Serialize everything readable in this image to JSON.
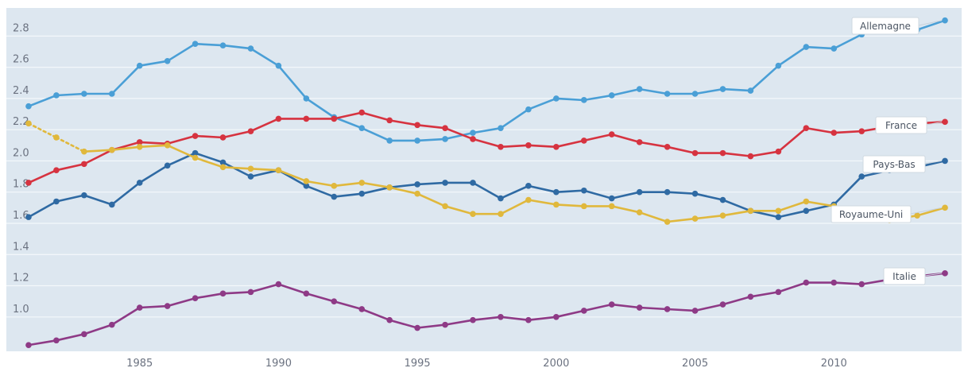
{
  "chart_data": {
    "type": "line",
    "x": [
      1981,
      1982,
      1983,
      1984,
      1985,
      1986,
      1987,
      1988,
      1989,
      1990,
      1991,
      1992,
      1993,
      1994,
      1995,
      1996,
      1997,
      1998,
      1999,
      2000,
      2001,
      2002,
      2003,
      2004,
      2005,
      2006,
      2007,
      2008,
      2009,
      2010,
      2011,
      2012,
      2013,
      2014
    ],
    "x_ticks": [
      "1985",
      "1990",
      "1995",
      "2000",
      "2005",
      "2010"
    ],
    "y_ticks": [
      "1.0",
      "1.2",
      "1.4",
      "1.6",
      "1.8",
      "2.0",
      "2.2",
      "2.4",
      "2.6",
      "2.8"
    ],
    "ylim": [
      0.78,
      2.98
    ],
    "xlim": [
      1980.2,
      2014.6
    ],
    "grid": true,
    "legend": "direct labels at right end",
    "colors": {
      "background": "#dde7f0",
      "grid": "#f4f8fb",
      "Allemagne": "#4a9fd6",
      "France": "#d63340",
      "Pays-Bas": "#2f6aa3",
      "Royaume-Uni": "#e0b83c",
      "Italie": "#8e3a86"
    },
    "series": [
      {
        "name": "Allemagne",
        "values": [
          2.35,
          2.42,
          2.43,
          2.43,
          2.61,
          2.64,
          2.75,
          2.74,
          2.72,
          2.61,
          2.4,
          2.28,
          2.21,
          2.13,
          2.13,
          2.14,
          2.18,
          2.21,
          2.33,
          2.4,
          2.39,
          2.42,
          2.46,
          2.43,
          2.43,
          2.46,
          2.45,
          2.61,
          2.73,
          2.72,
          2.81,
          2.87,
          2.84,
          2.9
        ]
      },
      {
        "name": "France",
        "values": [
          1.86,
          1.94,
          1.98,
          2.07,
          2.12,
          2.11,
          2.16,
          2.15,
          2.19,
          2.27,
          2.27,
          2.27,
          2.31,
          2.26,
          2.23,
          2.21,
          2.14,
          2.09,
          2.1,
          2.09,
          2.13,
          2.17,
          2.12,
          2.09,
          2.05,
          2.05,
          2.03,
          2.06,
          2.21,
          2.18,
          2.19,
          2.22,
          2.24,
          2.25
        ]
      },
      {
        "name": "Pays-Bas",
        "values": [
          1.64,
          1.74,
          1.78,
          1.72,
          1.86,
          1.97,
          2.05,
          1.99,
          1.9,
          1.94,
          1.84,
          1.77,
          1.79,
          1.83,
          1.85,
          1.86,
          1.86,
          1.76,
          1.84,
          1.8,
          1.81,
          1.76,
          1.8,
          1.8,
          1.79,
          1.75,
          1.68,
          1.64,
          1.68,
          1.72,
          1.9,
          1.94,
          1.96,
          2.0
        ]
      },
      {
        "name": "Royaume-Uni",
        "values": [
          2.24,
          2.15,
          2.06,
          2.07,
          2.09,
          2.1,
          2.02,
          1.96,
          1.95,
          1.94,
          1.87,
          1.84,
          1.86,
          1.83,
          1.79,
          1.71,
          1.66,
          1.66,
          1.75,
          1.72,
          1.71,
          1.71,
          1.67,
          1.61,
          1.63,
          1.65,
          1.68,
          1.68,
          1.74,
          1.71,
          1.66,
          1.62,
          1.65,
          1.7
        ]
      },
      {
        "name": "Italie",
        "values": [
          0.82,
          0.85,
          0.89,
          0.95,
          1.06,
          1.07,
          1.12,
          1.15,
          1.16,
          1.21,
          1.15,
          1.1,
          1.05,
          0.98,
          0.93,
          0.95,
          0.98,
          1.0,
          0.98,
          1.0,
          1.04,
          1.08,
          1.06,
          1.05,
          1.04,
          1.08,
          1.13,
          1.16,
          1.22,
          1.22,
          1.21,
          1.24,
          1.26,
          1.28
        ]
      }
    ]
  }
}
